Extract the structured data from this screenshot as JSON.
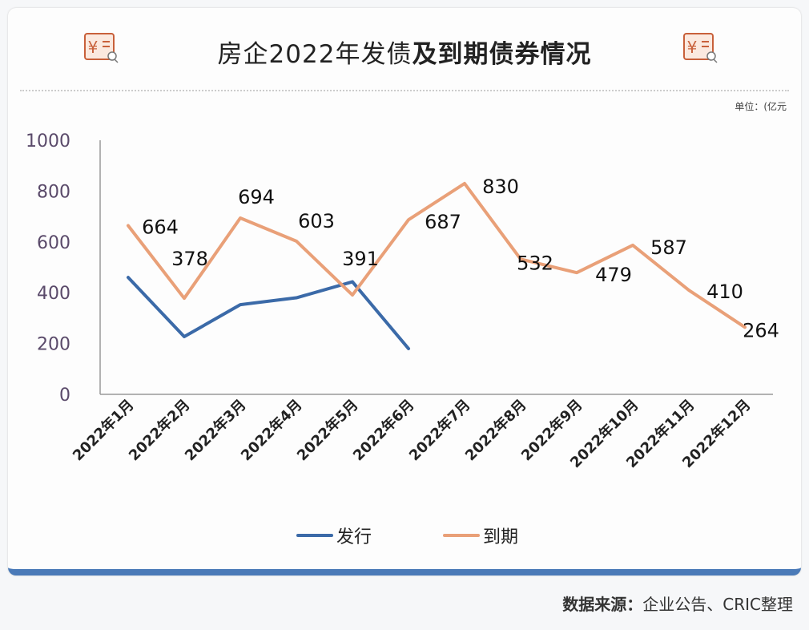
{
  "title": {
    "part1": "房企2022年发债",
    "part2": "及到期债券情况"
  },
  "unit_label": "单位：(亿元",
  "footer": {
    "label": "数据来源：",
    "text": "企业公告、CRIC整理"
  },
  "icons": [
    "receipt-yuan-search-icon",
    "receipt-yuan-search-icon"
  ],
  "colors": {
    "issue": "#3b6aa8",
    "maturity": "#e9a078",
    "accent": "#4a7ab8",
    "icon": "#c8603a"
  },
  "chart_data": {
    "type": "line",
    "categories": [
      "2022年1月",
      "2022年2月",
      "2022年3月",
      "2022年4月",
      "2022年5月",
      "2022年6月",
      "2022年7月",
      "2022年8月",
      "2022年9月",
      "2022年10月",
      "2022年11月",
      "2022年12月"
    ],
    "yticks": [
      "0",
      "200",
      "400",
      "600",
      "800",
      "1000"
    ],
    "ylim": [
      0,
      1000
    ],
    "grid": false,
    "legend": "bottom",
    "series": [
      {
        "name": "发行",
        "color": "#3b6aa8",
        "values": [
          460,
          227,
          353,
          380,
          443,
          180,
          null,
          null,
          null,
          null,
          null,
          null
        ],
        "labels": false
      },
      {
        "name": "到期",
        "color": "#e9a078",
        "values": [
          664,
          378,
          694,
          603,
          391,
          687,
          830,
          532,
          479,
          587,
          410,
          264
        ],
        "labels": true
      }
    ]
  }
}
